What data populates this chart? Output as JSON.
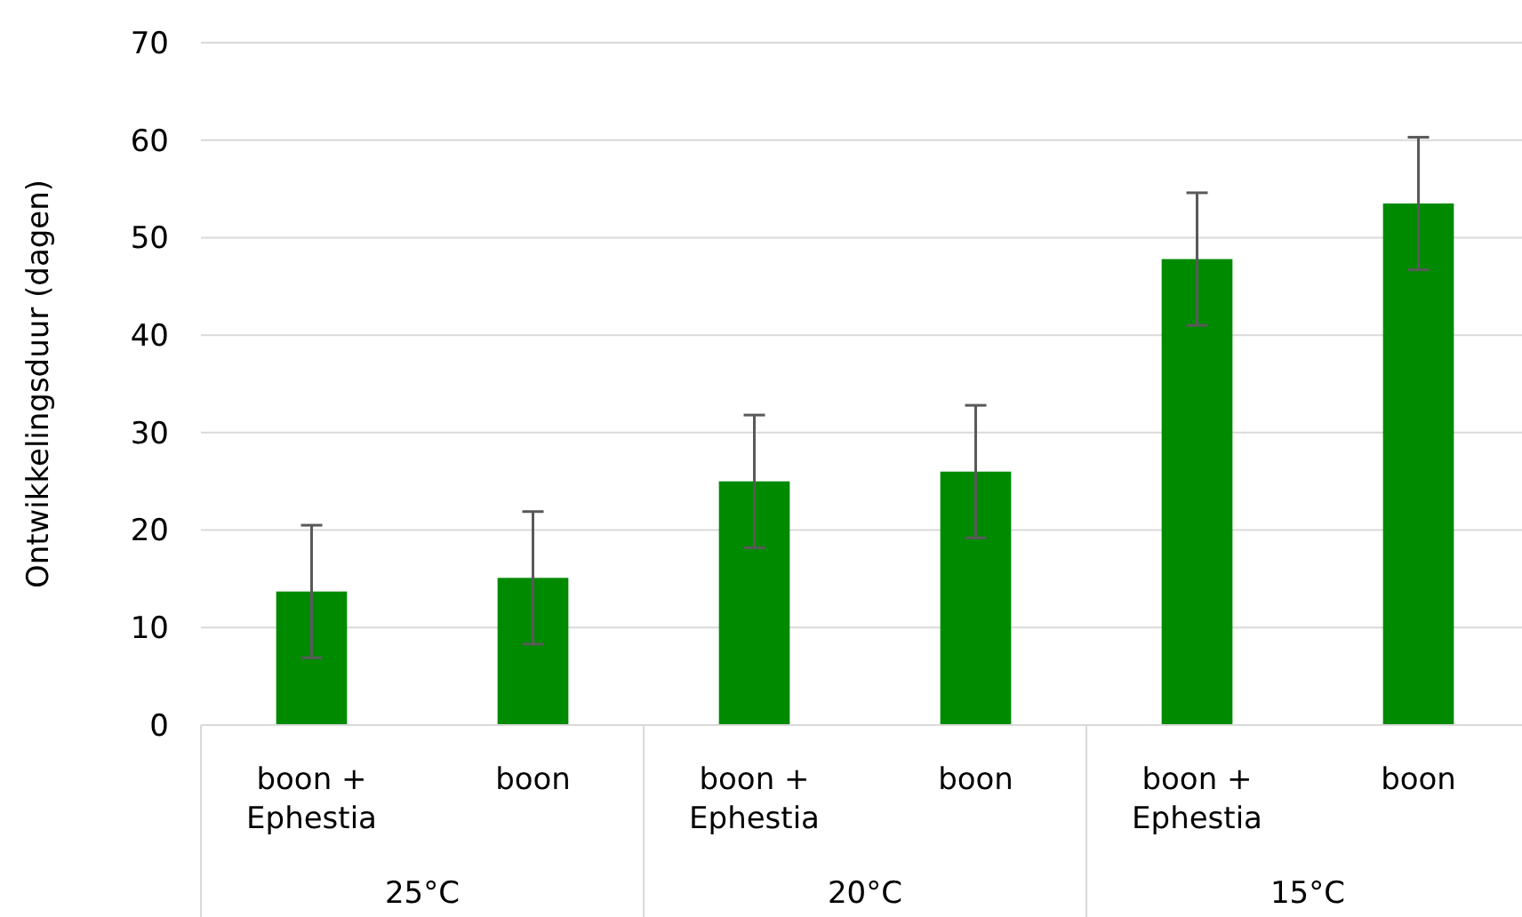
{
  "chart_data": {
    "type": "bar",
    "ylabel": "Ontwikkelingsduur (dagen)",
    "categories": [
      "boon + Ephestia",
      "boon",
      "boon + Ephestia",
      "boon",
      "boon + Ephestia",
      "boon"
    ],
    "values": [
      13.7,
      15.1,
      25,
      26,
      47.8,
      53.5
    ],
    "errors": [
      6.8,
      6.8,
      6.8,
      6.8,
      6.8,
      6.8
    ],
    "color": "#008a00",
    "ylim": [
      0,
      70
    ],
    "yticks": [
      0,
      10,
      20,
      30,
      40,
      50,
      60,
      70
    ],
    "grid": "y",
    "annotations": [
      "25°C",
      "20°C",
      "15°C"
    ]
  }
}
